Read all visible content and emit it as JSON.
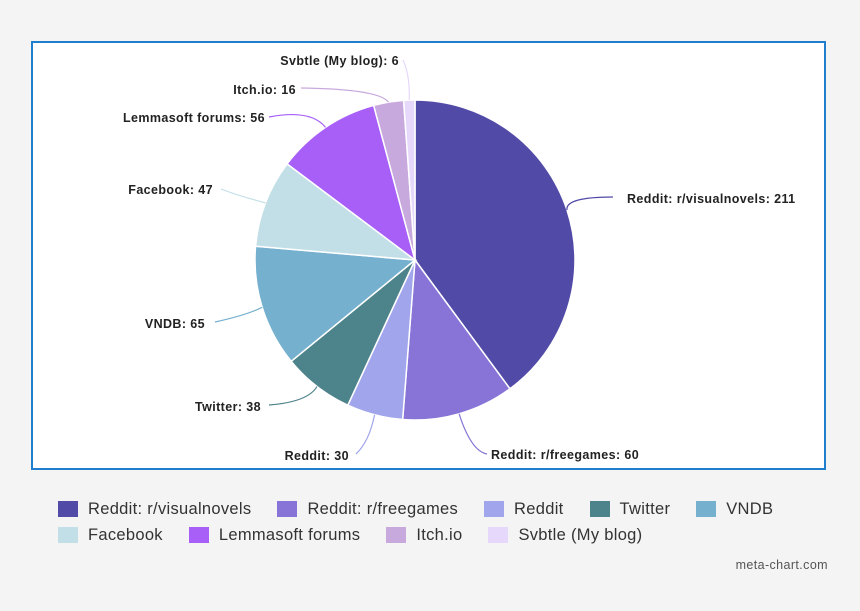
{
  "chart_data": {
    "type": "pie",
    "title": "",
    "start_angle_deg": 0,
    "direction": "clockwise",
    "legend_placement": "bottom",
    "slices": [
      {
        "label": "Reddit: r/visualnovels",
        "value": 211,
        "color": "#514aa7",
        "callout": "Reddit: r/visualnovels: 211"
      },
      {
        "label": "Reddit: r/freegames",
        "value": 60,
        "color": "#8774d6",
        "callout": "Reddit: r/freegames: 60"
      },
      {
        "label": "Reddit",
        "value": 30,
        "color": "#a1a6ec",
        "callout": "Reddit: 30"
      },
      {
        "label": "Twitter",
        "value": 38,
        "color": "#4d838a",
        "callout": "Twitter: 38"
      },
      {
        "label": "VNDB",
        "value": 65,
        "color": "#76b0cf",
        "callout": "VNDB: 65"
      },
      {
        "label": "Facebook",
        "value": 47,
        "color": "#c2dfe7",
        "callout": "Facebook: 47"
      },
      {
        "label": "Lemmasoft forums",
        "value": 56,
        "color": "#a75ff8",
        "callout": "Lemmasoft forums: 56"
      },
      {
        "label": "Itch.io",
        "value": 16,
        "color": "#c8a9dd",
        "callout": "Itch.io: 16"
      },
      {
        "label": "Svbtle (My blog)",
        "value": 6,
        "color": "#e6d8fa",
        "callout": "Svbtle (My blog): 6"
      }
    ]
  },
  "credit": "meta-chart.com"
}
